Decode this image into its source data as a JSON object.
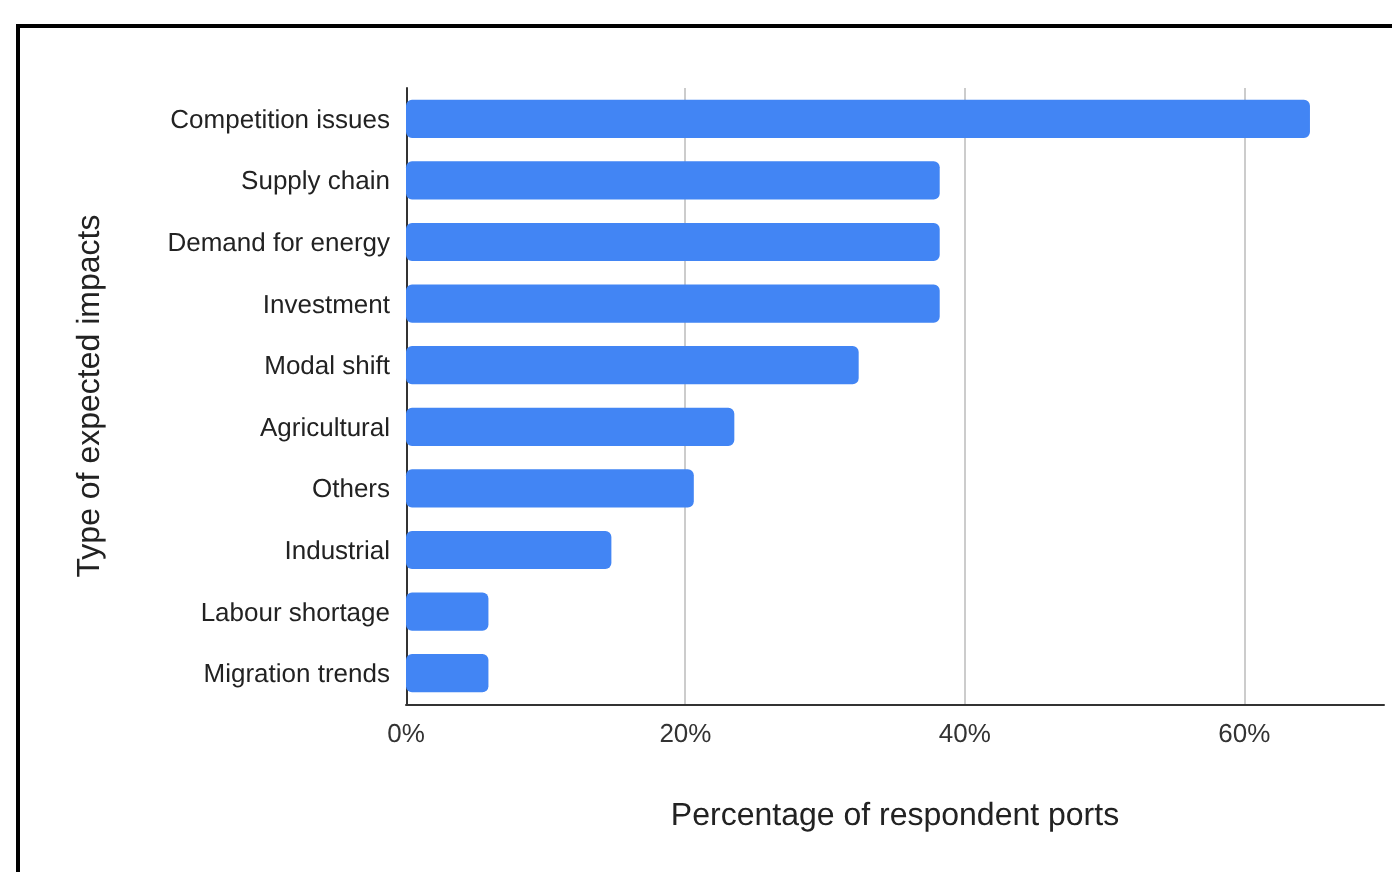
{
  "chart_data": {
    "type": "bar",
    "orientation": "horizontal",
    "xlabel": "Percentage of respondent ports",
    "ylabel": "Type of expected impacts",
    "categories": [
      "Competition issues",
      "Supply chain",
      "Demand for energy",
      "Investment",
      "Modal shift",
      "Agricultural",
      "Others",
      "Industrial",
      "Labour shortage",
      "Migration trends"
    ],
    "values": [
      64.7,
      38.2,
      38.2,
      38.2,
      32.4,
      23.5,
      20.6,
      14.7,
      5.9,
      5.9
    ],
    "color": "#4285f4",
    "xlim": [
      0,
      70
    ],
    "xticks": [
      {
        "value": 0,
        "label": "0%"
      },
      {
        "value": 20,
        "label": "20%"
      },
      {
        "value": 40,
        "label": "40%"
      },
      {
        "value": 60,
        "label": "60%"
      }
    ],
    "grid": "x"
  }
}
